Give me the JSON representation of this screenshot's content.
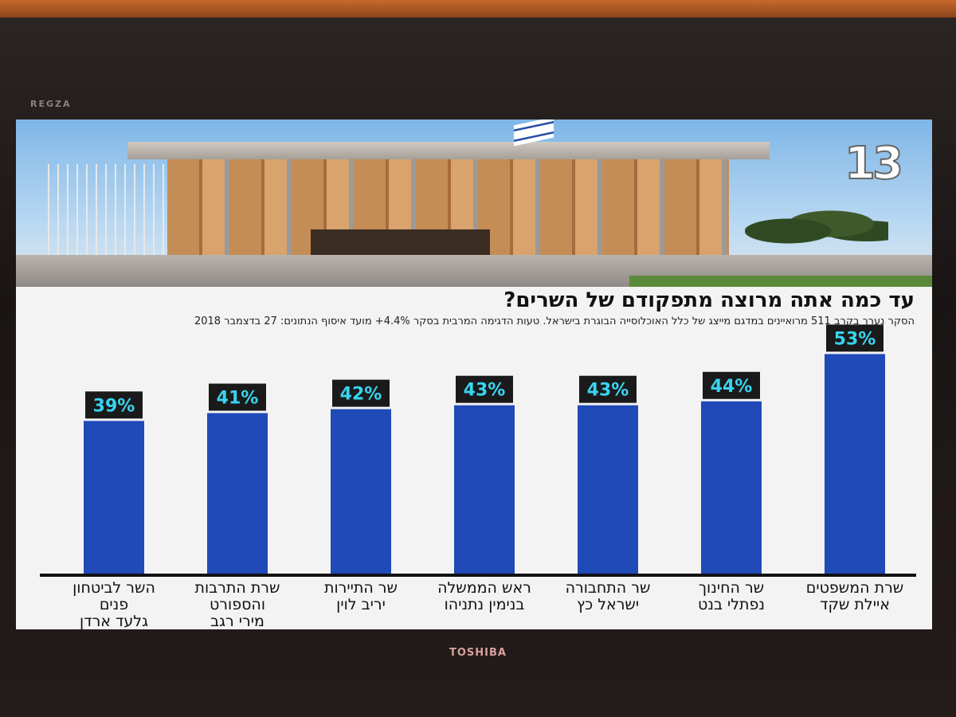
{
  "tv": {
    "brand_top": "REGZA",
    "brand_bottom": "TOSHIBA"
  },
  "channel_logo": "13",
  "colors": {
    "bar": "#1f4ab8",
    "label_bg": "#1a1a1a",
    "label_text": "#38d4f0",
    "baseline": "#111111"
  },
  "chart_data": {
    "type": "bar",
    "title": "עד כמה אתה מרוצה מתפקודם של השרים?",
    "subtitle": "הסקר נערך בקרב 511 מרואיינים במדגם מייצג של כלל האוכלוסייה הבוגרת בישראל. טעות הדגימה המרבית בסקר 4.4%+ מועד איסוף הנתונים: 27 בדצמבר 2018",
    "categories": [
      [
        "השר לביטחון פנים",
        "גלעד ארדן"
      ],
      [
        "שרת התרבות",
        "והספורט",
        "מירי רגב"
      ],
      [
        "שר התיירות",
        "יריב לוין"
      ],
      [
        "ראש הממשלה",
        "בנימין נתניהו"
      ],
      [
        "שר התחבורה",
        "ישראל כץ"
      ],
      [
        "שר החינוך",
        "נפתלי בנט"
      ],
      [
        "שרת המשפטים",
        "איילת שקד"
      ]
    ],
    "values": [
      39,
      41,
      42,
      43,
      43,
      44,
      53
    ],
    "value_labels": [
      "39%",
      "41%",
      "42%",
      "43%",
      "43%",
      "44%",
      "53%"
    ],
    "ylim": [
      0,
      60
    ],
    "grid": false,
    "xlabel": "",
    "ylabel": ""
  }
}
